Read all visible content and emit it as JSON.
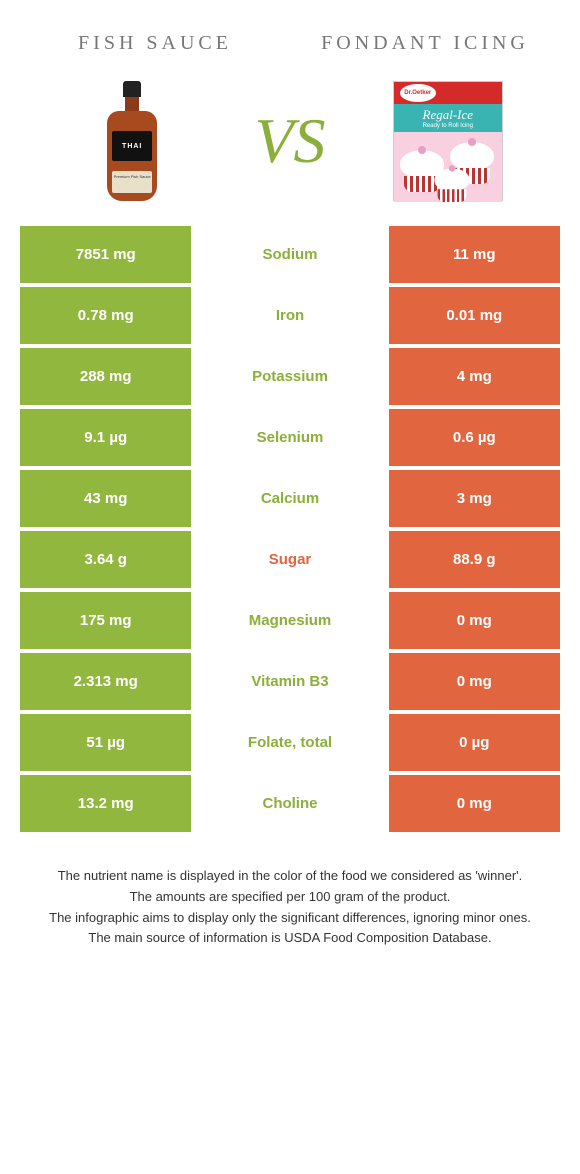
{
  "header": {
    "left_title": "Fish sauce",
    "right_title": "Fondant icing"
  },
  "vs_label": "VS",
  "left_illustration": {
    "brand_text": "THAI",
    "sublabel_text": "Premium Fish Sauce"
  },
  "right_illustration": {
    "brand_oval": "Dr.Oetker",
    "product_name": "Regal-Ice",
    "product_sub": "Ready to Roll Icing"
  },
  "colors": {
    "left_bg": "#91b73e",
    "right_bg": "#e1653e",
    "left_text": "#ffffff",
    "right_text": "#ffffff",
    "nutrient_green": "#8baf3a",
    "nutrient_orange": "#e1653e"
  },
  "nutrients": [
    {
      "name": "Sodium",
      "left": "7851 mg",
      "right": "11 mg",
      "winner": "left"
    },
    {
      "name": "Iron",
      "left": "0.78 mg",
      "right": "0.01 mg",
      "winner": "left"
    },
    {
      "name": "Potassium",
      "left": "288 mg",
      "right": "4 mg",
      "winner": "left"
    },
    {
      "name": "Selenium",
      "left": "9.1 µg",
      "right": "0.6 µg",
      "winner": "left"
    },
    {
      "name": "Calcium",
      "left": "43 mg",
      "right": "3 mg",
      "winner": "left"
    },
    {
      "name": "Sugar",
      "left": "3.64 g",
      "right": "88.9 g",
      "winner": "right"
    },
    {
      "name": "Magnesium",
      "left": "175 mg",
      "right": "0 mg",
      "winner": "left"
    },
    {
      "name": "Vitamin B3",
      "left": "2.313 mg",
      "right": "0 mg",
      "winner": "left"
    },
    {
      "name": "Folate, total",
      "left": "51 µg",
      "right": "0 µg",
      "winner": "left"
    },
    {
      "name": "Choline",
      "left": "13.2 mg",
      "right": "0 mg",
      "winner": "left"
    }
  ],
  "footer": {
    "line1": "The nutrient name is displayed in the color of the food we considered as 'winner'.",
    "line2": "The amounts are specified per 100 gram of the product.",
    "line3": "The infographic aims to display only the significant differences, ignoring minor ones.",
    "line4": "The main source of information is USDA Food Composition Database."
  }
}
